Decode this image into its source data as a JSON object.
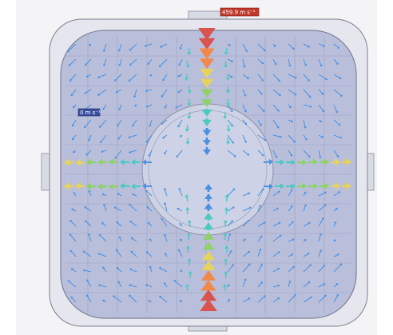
{
  "legend": {
    "max_label": "459.9 m s⁻¹",
    "min_label": "0 m s⁻¹"
  }
}
